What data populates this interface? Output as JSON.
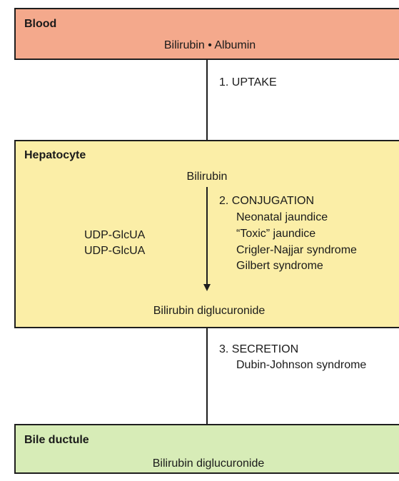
{
  "blood": {
    "title": "Blood",
    "content": "Bilirubin • Albumin"
  },
  "step1": {
    "label": "1. UPTAKE"
  },
  "hepatocyte": {
    "title": "Hepatocyte",
    "bilirubin": "Bilirubin",
    "cofactors": [
      "UDP-GlcUA",
      "UDP-GlcUA"
    ],
    "product": "Bilirubin diglucuronide"
  },
  "step2": {
    "label": "2. CONJUGATION",
    "conditions": [
      "Neonatal jaundice",
      "“Toxic” jaundice",
      "Crigler-Najjar syndrome",
      "Gilbert syndrome"
    ]
  },
  "step3": {
    "label": "3. SECRETION",
    "conditions": [
      "Dubin-Johnson syndrome"
    ]
  },
  "bile": {
    "title": "Bile ductule",
    "content": "Bilirubin diglucuronide"
  }
}
